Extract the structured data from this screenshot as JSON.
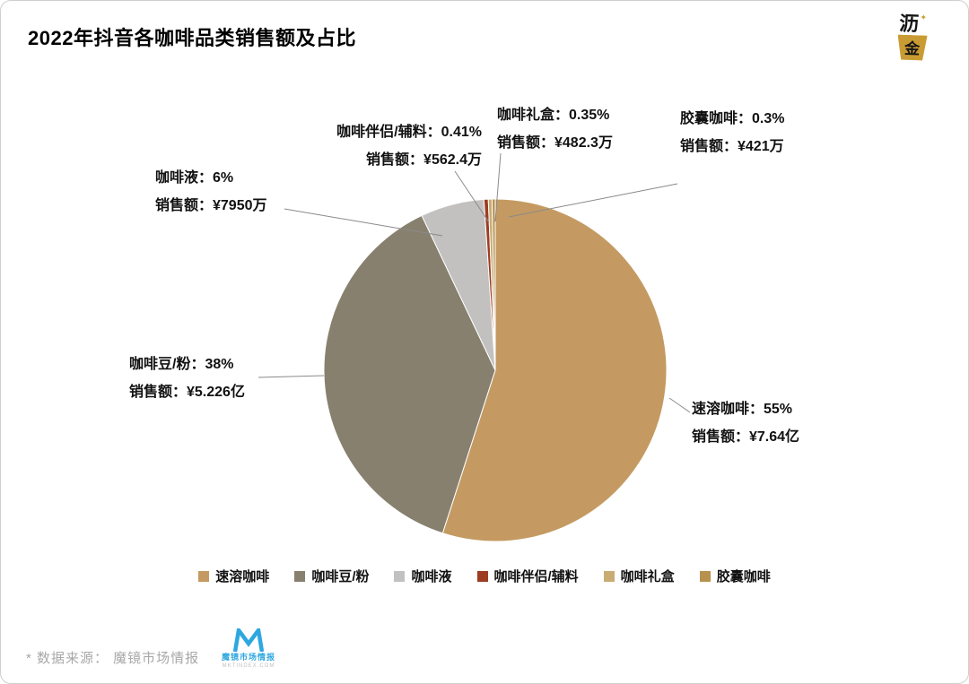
{
  "title": "2022年抖音各咖啡品类销售额及占比",
  "brand_logo": {
    "line1": "沥",
    "line2": "金"
  },
  "chart_data": {
    "type": "pie",
    "title": "2022年抖音各咖啡品类销售额及占比",
    "start_angle_deg": 0,
    "direction": "clockwise",
    "sales_label": "销售额",
    "legend_position": "bottom",
    "series": [
      {
        "name": "速溶咖啡",
        "percent": 55,
        "sales": "¥7.64亿",
        "color": "#C49A62"
      },
      {
        "name": "咖啡豆/粉",
        "percent": 38,
        "sales": "¥5.226亿",
        "color": "#87806E"
      },
      {
        "name": "咖啡液",
        "percent": 6,
        "sales": "¥7950万",
        "color": "#C2C1BF"
      },
      {
        "name": "咖啡伴侣/辅料",
        "percent": 0.41,
        "sales": "¥562.4万",
        "color": "#9C3D22"
      },
      {
        "name": "咖啡礼盒",
        "percent": 0.35,
        "sales": "¥482.3万",
        "color": "#C9AC74"
      },
      {
        "name": "胶囊咖啡",
        "percent": 0.3,
        "sales": "¥421万",
        "color": "#B7914E"
      }
    ]
  },
  "footer": {
    "source": "* 数据来源： 魔镜市场情报",
    "moojing_logo_text": "魔镜市场情报",
    "moojing_logo_sub": "MKTINDEX.COM"
  }
}
